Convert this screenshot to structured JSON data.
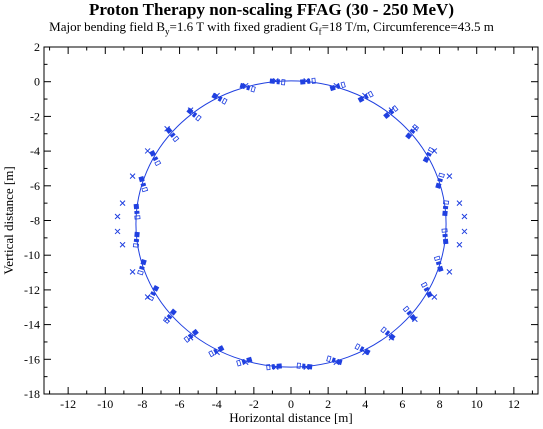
{
  "chart_data": {
    "type": "scatter",
    "title": "Proton Therapy non-scaling FFAG (30 - 250 MeV)",
    "subtitle": {
      "p1": "Major bending field B",
      "s1": "y",
      "p2": "=1.6 T with fixed gradient G",
      "s2": "f",
      "p3": "=18 T/m, Circumference=43.5 m"
    },
    "xlabel": "Horizontal distance [m]",
    "ylabel": "Vertical distance [m]",
    "xlim": [
      -13.3,
      13.3
    ],
    "ylim": [
      -18,
      2
    ],
    "xticks": [
      -12,
      -10,
      -8,
      -6,
      -4,
      -2,
      0,
      2,
      4,
      6,
      8,
      10,
      12
    ],
    "yticks": [
      2,
      0,
      -2,
      -4,
      -6,
      -8,
      -10,
      -12,
      -14,
      -16,
      -18
    ],
    "grid": false,
    "legend": "none",
    "ring": {
      "center": [
        0,
        -8.2
      ],
      "radius_x": 8.35,
      "radius_y": 8.25,
      "cells": 32,
      "color": "#2040e0"
    },
    "series": [
      {
        "x": [
          0.82,
          2.44,
          3.98,
          5.41,
          6.67,
          7.72,
          8.53,
          9.07,
          9.34,
          9.34,
          9.07,
          8.53,
          7.72,
          6.67,
          5.41,
          3.98,
          2.44,
          0.82,
          -0.82,
          -2.44,
          -3.98,
          -5.41,
          -6.67,
          -7.72,
          -8.53,
          -9.07,
          -9.34,
          -9.34,
          -9.07,
          -8.53,
          -7.72,
          -6.67,
          -5.41,
          -3.98,
          -2.44,
          -0.82
        ],
        "y": [
          0.05,
          -0.23,
          -0.8,
          -1.64,
          -2.71,
          -3.99,
          -5.44,
          -7.0,
          -8.63,
          -7.77,
          -9.4,
          -10.96,
          -12.41,
          -13.69,
          -14.76,
          -15.6,
          -16.17,
          -16.45,
          -16.45,
          -16.17,
          -15.6,
          -14.76,
          -13.69,
          -12.41,
          -10.96,
          -9.4,
          -7.77,
          -8.63,
          -7.0,
          -5.44,
          -3.99,
          -2.71,
          -1.64,
          -0.8,
          -0.23,
          0.05
        ]
      }
    ]
  }
}
